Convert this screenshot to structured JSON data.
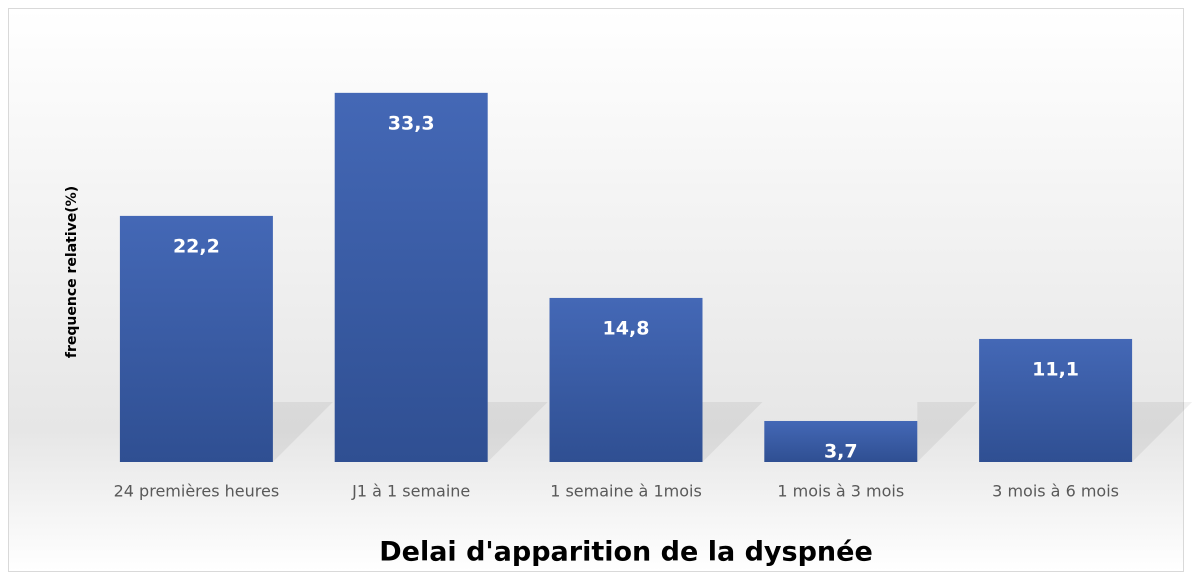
{
  "chart_data": {
    "type": "bar",
    "xlabel": "Delai d'apparition de la dyspnée",
    "ylabel": "frequence relative(%)",
    "categories": [
      "24 premières heures",
      "J1 à 1 semaine",
      "1 semaine à 1mois",
      "1 mois à 3 mois",
      "3 mois à 6 mois"
    ],
    "values": [
      22.2,
      33.3,
      14.8,
      3.7,
      11.1
    ],
    "value_labels": [
      "22,2",
      "33,3",
      "14,8",
      "3,7",
      "11,1"
    ],
    "color": "#3a5ca8",
    "ylim": [
      0,
      35
    ]
  }
}
